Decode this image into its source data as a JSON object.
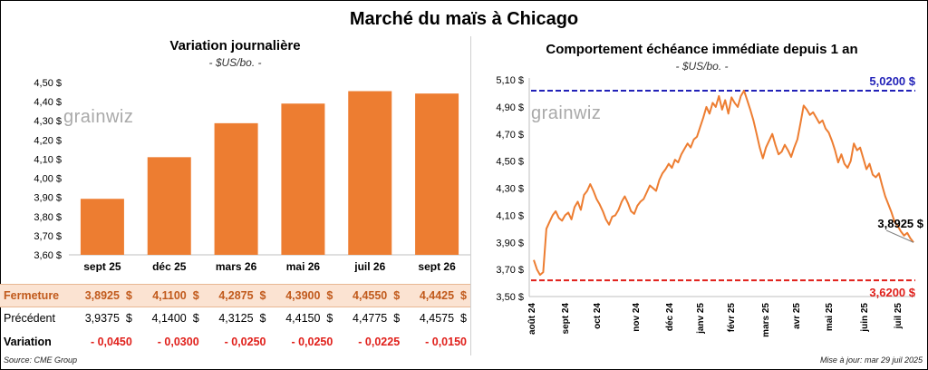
{
  "title": "Marché du maïs à Chicago",
  "left": {
    "title": "Variation journalière",
    "subtitle": "- $US/bo. -",
    "watermark": "grainwiz",
    "chart_data": {
      "type": "bar",
      "categories": [
        "sept 25",
        "déc 25",
        "mars 26",
        "mai 26",
        "juil 26",
        "sept 26"
      ],
      "values": [
        3.8925,
        4.11,
        4.2875,
        4.39,
        4.455,
        4.4425
      ],
      "ylim": [
        3.6,
        4.5
      ],
      "yticks": [
        "3,60 $",
        "3,70 $",
        "3,80 $",
        "3,90 $",
        "4,00 $",
        "4,10 $",
        "4,20 $",
        "4,30 $",
        "4,40 $",
        "4,50 $"
      ],
      "grid": false,
      "colors": {
        "bar": "#ed7d31"
      }
    },
    "table": {
      "rows": [
        {
          "label": "Fermeture",
          "cells": [
            "3,8925  $",
            "4,1100  $",
            "4,2875  $",
            "4,3900  $",
            "4,4550  $",
            "4,4425  $"
          ]
        },
        {
          "label": "Précédent",
          "cells": [
            "3,9375  $",
            "4,1400  $",
            "4,3125  $",
            "4,4150  $",
            "4,4775  $",
            "4,4575  $"
          ]
        },
        {
          "label": "Variation",
          "cells": [
            "- 0,0450",
            "- 0,0300",
            "- 0,0250",
            "- 0,0250",
            "- 0,0225",
            "- 0,0150"
          ]
        }
      ]
    },
    "source": "Source: CME Group"
  },
  "right": {
    "title": "Comportement  échéance immédiate depuis 1 an",
    "subtitle": "- $US/bo. -",
    "watermark": "grainwiz",
    "chart_data": {
      "type": "line",
      "ylim": [
        3.5,
        5.1
      ],
      "yticks": [
        "3,50 $",
        "3,70 $",
        "3,90 $",
        "4,10 $",
        "4,30 $",
        "4,50 $",
        "4,70 $",
        "4,90 $",
        "5,10 $"
      ],
      "xlabels": [
        "août 24",
        "sept 24",
        "oct 24",
        "nov 24",
        "déc 24",
        "janv 25",
        "févr 25",
        "mars 25",
        "avr 25",
        "mai 25",
        "juin 25",
        "juil 25"
      ],
      "series": [
        {
          "values": [
            3.77,
            3.7,
            3.66,
            3.68,
            4.0,
            4.05,
            4.1,
            4.13,
            4.08,
            4.06,
            4.1,
            4.12,
            4.07,
            4.16,
            4.2,
            4.14,
            4.25,
            4.28,
            4.33,
            4.28,
            4.22,
            4.18,
            4.13,
            4.07,
            4.03,
            4.09,
            4.1,
            4.14,
            4.2,
            4.24,
            4.19,
            4.13,
            4.11,
            4.17,
            4.2,
            4.22,
            4.27,
            4.32,
            4.3,
            4.28,
            4.36,
            4.41,
            4.44,
            4.48,
            4.45,
            4.51,
            4.49,
            4.55,
            4.59,
            4.63,
            4.6,
            4.66,
            4.68,
            4.75,
            4.82,
            4.9,
            4.85,
            4.93,
            4.9,
            4.98,
            4.88,
            4.95,
            4.85,
            4.97,
            4.93,
            4.9,
            4.98,
            5.02,
            4.95,
            4.88,
            4.8,
            4.7,
            4.6,
            4.52,
            4.6,
            4.65,
            4.7,
            4.62,
            4.55,
            4.57,
            4.62,
            4.58,
            4.53,
            4.6,
            4.66,
            4.78,
            4.91,
            4.88,
            4.84,
            4.86,
            4.82,
            4.78,
            4.8,
            4.74,
            4.71,
            4.65,
            4.58,
            4.49,
            4.55,
            4.48,
            4.45,
            4.5,
            4.63,
            4.58,
            4.6,
            4.52,
            4.44,
            4.48,
            4.4,
            4.38,
            4.41,
            4.32,
            4.24,
            4.18,
            4.12,
            4.05,
            4.02,
            3.98,
            3.95,
            3.97,
            3.93,
            3.9
          ]
        }
      ],
      "reference_lines": [
        {
          "value": 5.02,
          "label": "5,0200 $",
          "color": "#2222b8"
        },
        {
          "value": 3.62,
          "label": "3,6200 $",
          "color": "#e0201b"
        }
      ],
      "last_label": "3,8925 $",
      "colors": {
        "line": "#ed7d31"
      }
    },
    "updated": "Mise à jour: mar 29 juil 2025"
  }
}
